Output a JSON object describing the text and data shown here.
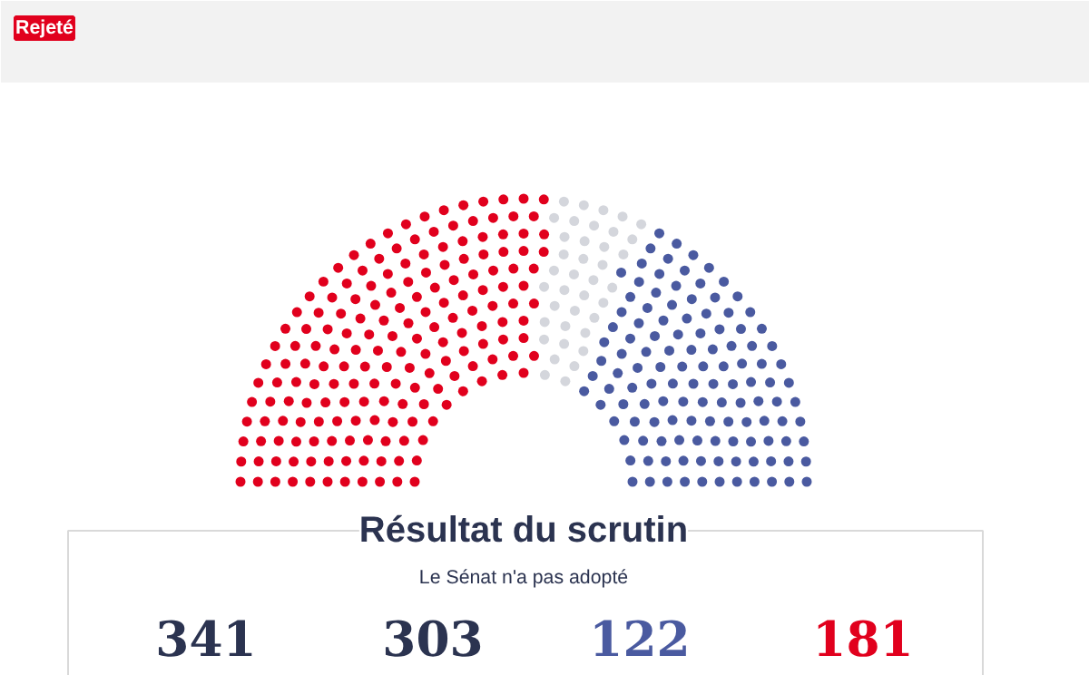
{
  "chart_data": {
    "type": "other",
    "title": "Résultat du scrutin",
    "subtitle": "Le Sénat n'a pas adopté",
    "annotations": [
      "Rejeté"
    ],
    "categories": [
      null,
      null,
      null,
      null
    ],
    "values": [
      341,
      303,
      122,
      181
    ],
    "colors": [
      "#2b3350",
      "#2b3350",
      "#4a5aa0",
      "#e1001d"
    ],
    "data_labels": true
  }
}
